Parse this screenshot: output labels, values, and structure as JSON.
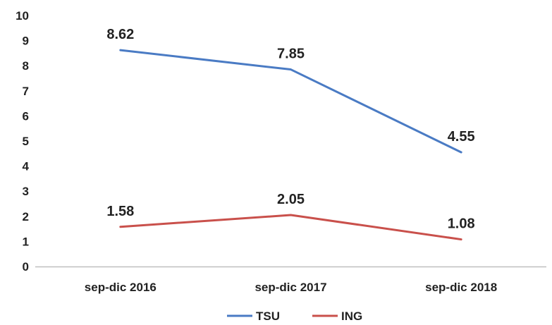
{
  "chart_data": {
    "type": "line",
    "categories": [
      "sep-dic 2016",
      "sep-dic 2017",
      "sep-dic 2018"
    ],
    "series": [
      {
        "name": "TSU",
        "values": [
          8.62,
          7.85,
          4.55
        ],
        "labels": [
          "8.62",
          "7.85",
          "4.55"
        ],
        "color": "#4a7bc4"
      },
      {
        "name": "ING",
        "values": [
          1.58,
          2.05,
          1.08
        ],
        "labels": [
          "1.58",
          "2.05",
          "1.08"
        ],
        "color": "#c9504b"
      }
    ],
    "yticks": [
      "0",
      "1",
      "2",
      "3",
      "4",
      "5",
      "6",
      "7",
      "8",
      "9",
      "10"
    ],
    "ylim": [
      0,
      10
    ],
    "grid": false,
    "legend_position": "bottom",
    "axis_color": "#bfbfbf"
  }
}
